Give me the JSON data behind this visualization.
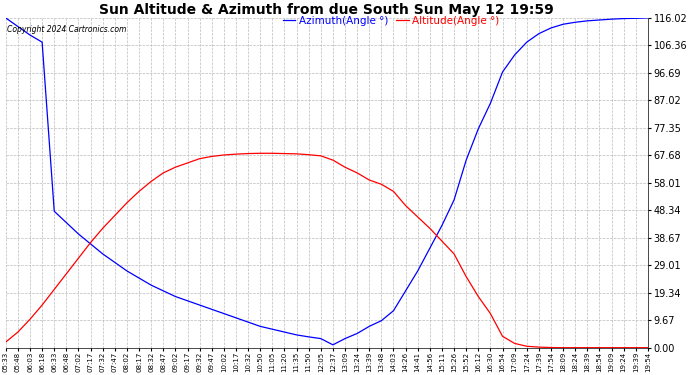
{
  "title": "Sun Altitude & Azimuth from due South Sun May 12 19:59",
  "copyright": "Copyright 2024 Cartronics.com",
  "legend_azimuth": "Azimuth(Angle °)",
  "legend_altitude": "Altitude(Angle °)",
  "azimuth_color": "blue",
  "altitude_color": "red",
  "ymin": 0.0,
  "ymax": 116.02,
  "yticks": [
    0.0,
    9.67,
    19.34,
    29.01,
    38.67,
    48.34,
    58.01,
    67.68,
    77.35,
    87.02,
    96.69,
    106.36,
    116.02
  ],
  "background_color": "#ffffff",
  "grid_color": "#bbbbbb",
  "x_times": [
    "05:33",
    "05:48",
    "06:03",
    "06:18",
    "06:33",
    "06:48",
    "07:02",
    "07:17",
    "07:32",
    "07:47",
    "08:02",
    "08:17",
    "08:32",
    "08:47",
    "09:02",
    "09:17",
    "09:32",
    "09:47",
    "10:02",
    "10:17",
    "10:32",
    "10:50",
    "11:05",
    "11:20",
    "11:35",
    "11:50",
    "12:05",
    "12:37",
    "13:09",
    "13:24",
    "13:39",
    "13:48",
    "14:03",
    "14:26",
    "14:41",
    "14:56",
    "15:11",
    "15:26",
    "15:52",
    "16:12",
    "16:30",
    "16:54",
    "17:09",
    "17:24",
    "17:39",
    "17:54",
    "18:09",
    "18:24",
    "18:39",
    "18:54",
    "19:09",
    "19:24",
    "19:39",
    "19:54"
  ],
  "azimuth_values": [
    116.02,
    113.0,
    110.0,
    107.5,
    48.0,
    44.0,
    40.0,
    36.5,
    33.0,
    30.0,
    27.0,
    24.5,
    22.0,
    20.0,
    18.0,
    16.5,
    15.0,
    13.5,
    12.0,
    10.5,
    9.0,
    7.5,
    6.5,
    5.5,
    4.5,
    3.8,
    3.2,
    1.0,
    3.2,
    5.0,
    7.5,
    9.5,
    13.0,
    20.0,
    27.0,
    35.0,
    43.0,
    52.0,
    66.0,
    77.0,
    86.0,
    97.0,
    103.0,
    107.5,
    110.5,
    112.5,
    113.8,
    114.5,
    115.0,
    115.3,
    115.6,
    115.8,
    115.9,
    116.02
  ],
  "altitude_values": [
    2.0,
    5.5,
    10.0,
    15.0,
    20.5,
    26.0,
    31.5,
    37.0,
    42.0,
    46.5,
    51.0,
    55.0,
    58.5,
    61.5,
    63.5,
    65.0,
    66.5,
    67.3,
    67.8,
    68.1,
    68.3,
    68.4,
    68.4,
    68.3,
    68.2,
    67.9,
    67.5,
    66.0,
    63.5,
    61.5,
    59.0,
    57.5,
    55.0,
    50.0,
    46.0,
    42.0,
    37.5,
    33.0,
    25.0,
    18.0,
    12.0,
    4.0,
    1.5,
    0.5,
    0.2,
    0.05,
    0.0,
    0.0,
    0.0,
    0.0,
    0.0,
    0.0,
    0.0,
    0.0
  ]
}
